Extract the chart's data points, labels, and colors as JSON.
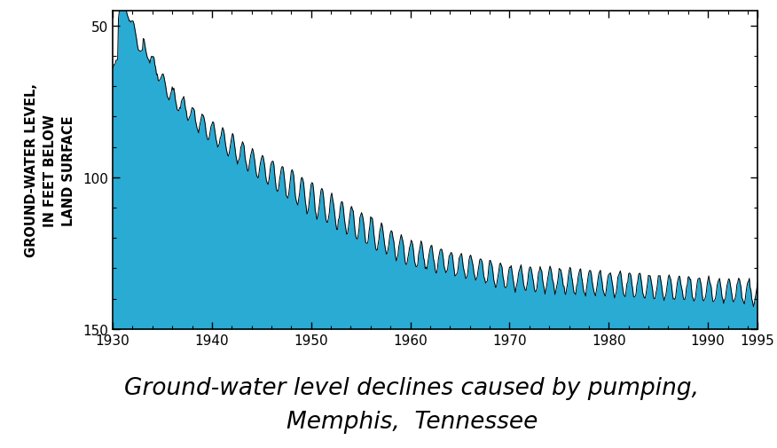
{
  "title_line1": "Ground-water level declines caused by pumping,",
  "title_line2": "Memphis,  Tennessee",
  "ylabel": "GROUND-WATER LEVEL,\nIN FEET BELOW\nLAND SURFACE",
  "xlim": [
    1930,
    1995
  ],
  "ylim": [
    150,
    45
  ],
  "xticks": [
    1930,
    1940,
    1950,
    1960,
    1970,
    1980,
    1990,
    1995
  ],
  "yticks": [
    50,
    100,
    150
  ],
  "fill_color": "#29ABD4",
  "line_color": "#000000",
  "bg_color": "#ffffff",
  "title_fontsize": 19,
  "ylabel_fontsize": 10.5,
  "tick_labelsize": 11
}
